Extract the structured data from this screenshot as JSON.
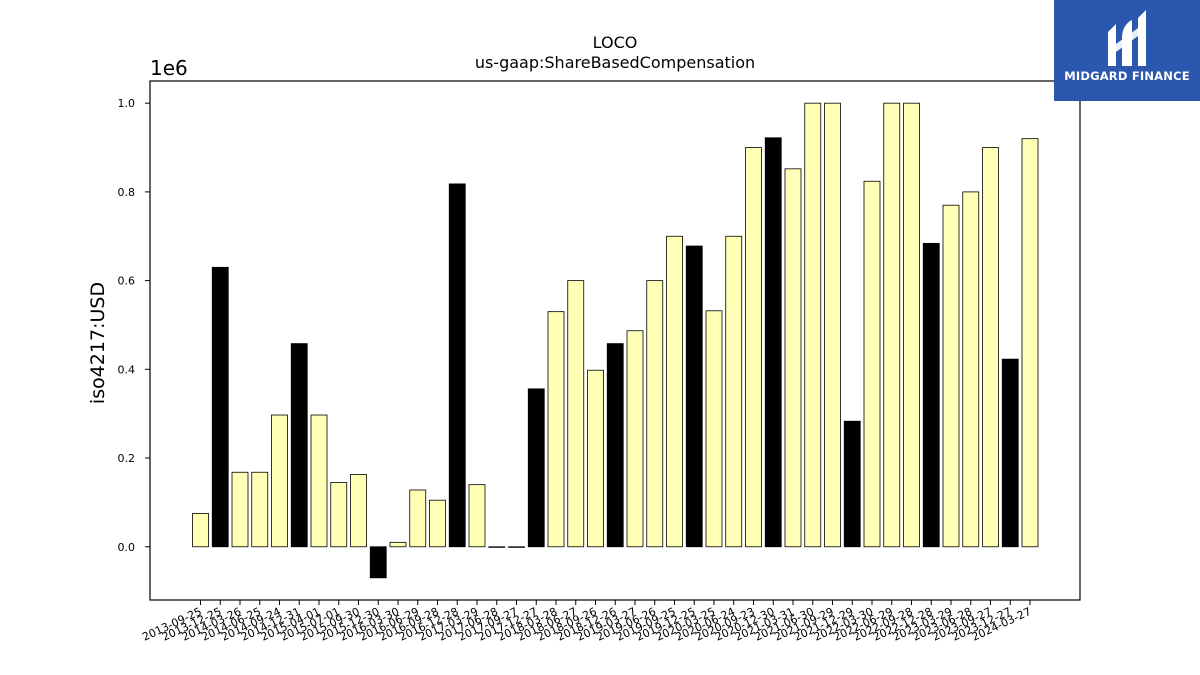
{
  "chart_data": {
    "type": "bar",
    "title": "LOCO",
    "subtitle": "us-gaap:ShareBasedCompensation",
    "xlabel": "",
    "ylabel": "iso4217:USD",
    "multiplier_label": "1e6",
    "ylim": [
      -0.12,
      1.05
    ],
    "yticks": [
      "0.0",
      "0.2",
      "0.4",
      "0.6",
      "0.8",
      "1.0"
    ],
    "grid": false,
    "legend": "none",
    "colors": {
      "light": "#FFFFB5",
      "dark": "#000000",
      "edge": "#000000"
    },
    "categories": [
      "2013-09-25",
      "2013-12-25",
      "2014-03-26",
      "2014-06-25",
      "2014-09-24",
      "2014-12-31",
      "2015-04-01",
      "2015-07-01",
      "2015-09-30",
      "2015-12-30",
      "2016-03-30",
      "2016-06-29",
      "2016-09-28",
      "2016-12-28",
      "2017-03-29",
      "2017-06-28",
      "2017-09-27",
      "2017-12-27",
      "2018-03-28",
      "2018-06-27",
      "2018-09-26",
      "2018-12-26",
      "2019-03-27",
      "2019-06-26",
      "2019-09-25",
      "2019-12-25",
      "2020-03-25",
      "2020-06-24",
      "2020-09-23",
      "2020-12-30",
      "2021-03-31",
      "2021-06-30",
      "2021-09-29",
      "2021-12-29",
      "2022-03-30",
      "2022-06-29",
      "2022-09-28",
      "2022-12-28",
      "2023-03-29",
      "2023-06-28",
      "2023-09-27",
      "2023-12-27",
      "2024-03-27"
    ],
    "values": [
      0.075,
      0.63,
      0.168,
      0.168,
      0.297,
      0.458,
      0.297,
      0.145,
      0.163,
      -0.07,
      0.01,
      0.128,
      0.105,
      0.818,
      0.14,
      0.0,
      0.0,
      0.356,
      0.53,
      0.6,
      0.398,
      0.458,
      0.487,
      0.6,
      0.7,
      0.678,
      0.532,
      0.7,
      0.9,
      0.922,
      0.852,
      1.0,
      1.0,
      0.283,
      0.824,
      1.0,
      1.0,
      0.684,
      0.77,
      0.8,
      0.9,
      0.423,
      0.92
    ],
    "highlight": [
      false,
      true,
      false,
      false,
      false,
      true,
      false,
      false,
      false,
      true,
      false,
      false,
      false,
      true,
      false,
      false,
      false,
      true,
      false,
      false,
      false,
      true,
      false,
      false,
      false,
      true,
      false,
      false,
      false,
      true,
      false,
      false,
      false,
      true,
      false,
      false,
      false,
      true,
      false,
      false,
      false,
      true,
      false
    ]
  },
  "brand": {
    "name": "MIDGARD FINANCE",
    "icon": "midgard-logo-icon",
    "color": "#2B57AE"
  }
}
